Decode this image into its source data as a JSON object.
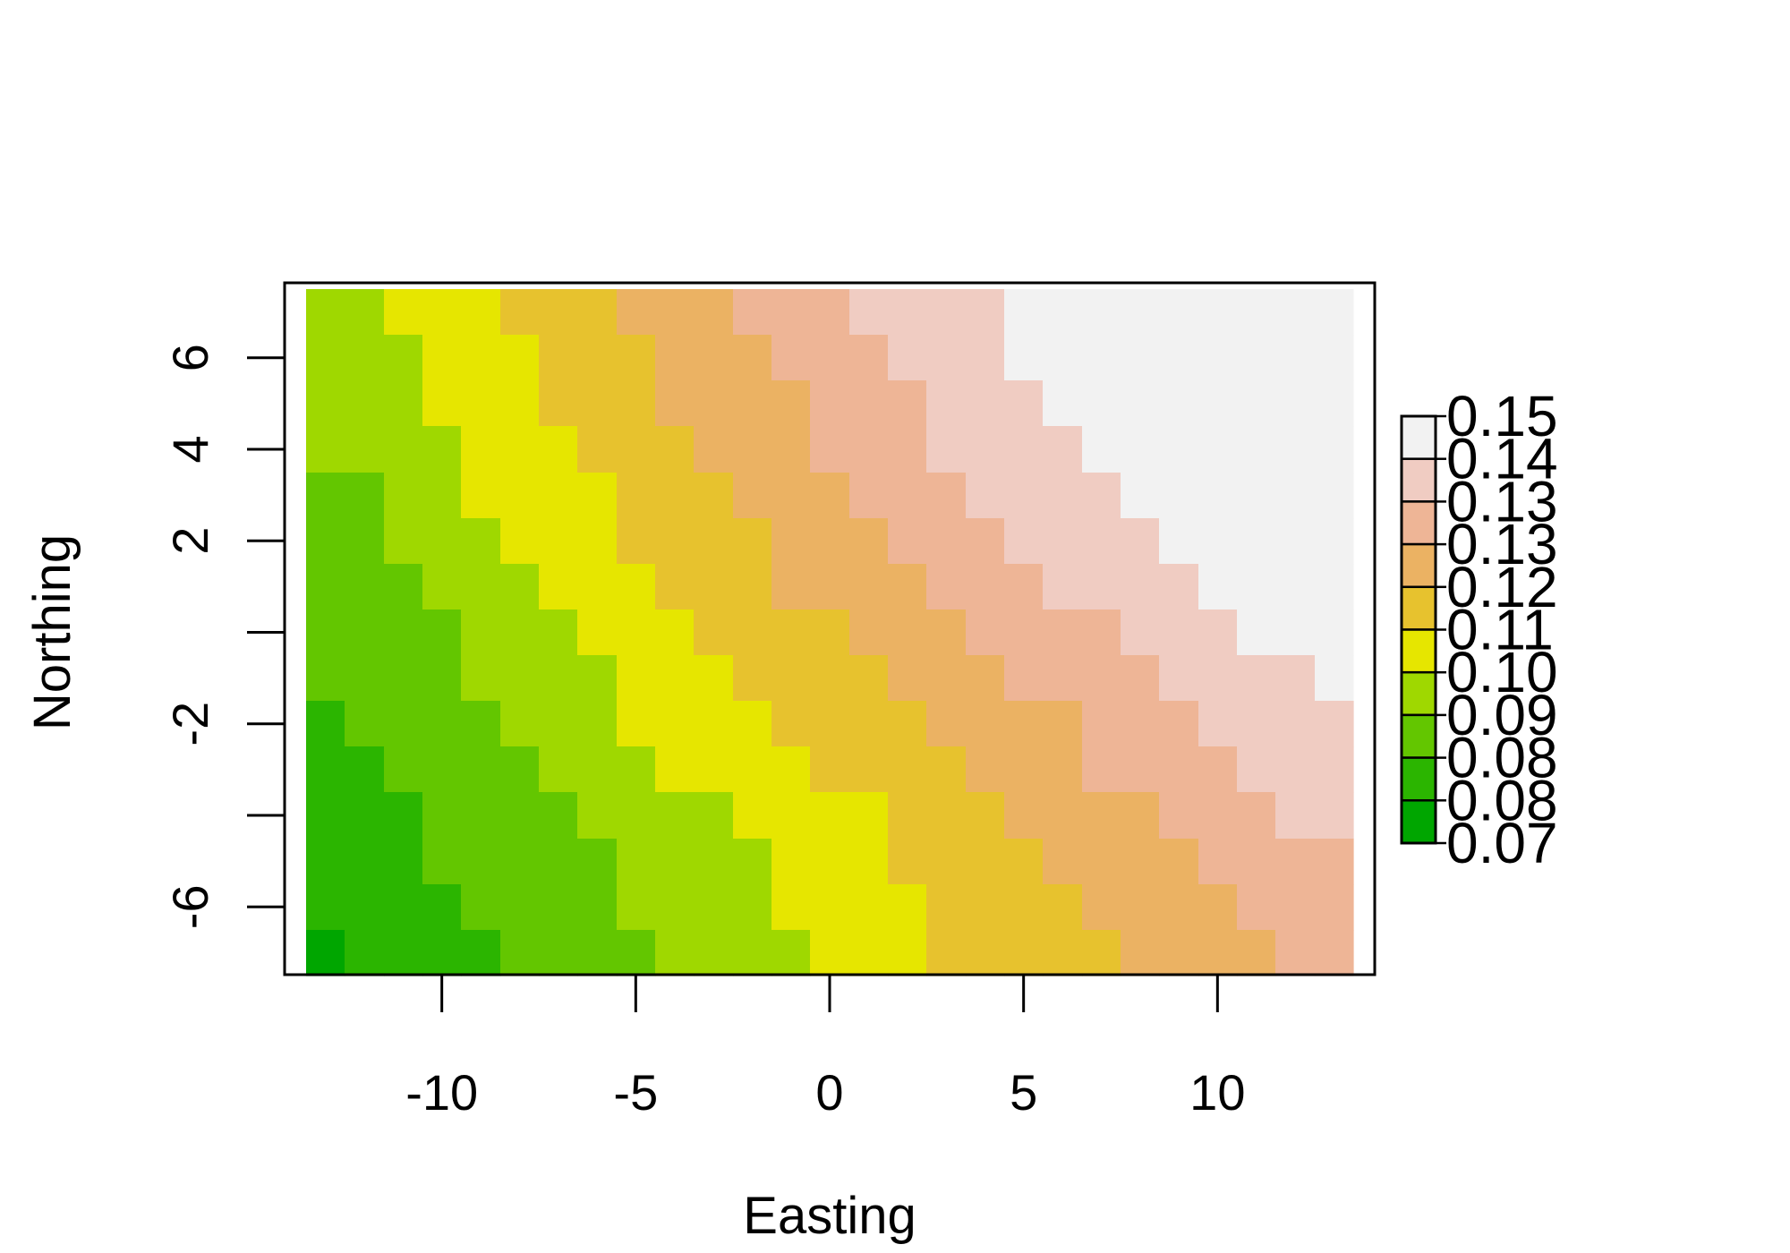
{
  "chart_data": {
    "type": "heatmap",
    "title": "",
    "xlabel": "Easting",
    "ylabel": "Northing",
    "xlim": [
      -13.5,
      13.5
    ],
    "ylim": [
      -7.5,
      7.5
    ],
    "x_ticks": [
      {
        "value": -10,
        "label": "-10"
      },
      {
        "value": -5,
        "label": "-5"
      },
      {
        "value": 0,
        "label": "0"
      },
      {
        "value": 5,
        "label": "5"
      },
      {
        "value": 10,
        "label": "10"
      }
    ],
    "y_ticks": [
      {
        "value": -6,
        "label": "-6"
      },
      {
        "value": -4,
        "label": ""
      },
      {
        "value": -2,
        "label": "-2"
      },
      {
        "value": 0,
        "label": ""
      },
      {
        "value": 2,
        "label": "2"
      },
      {
        "value": 4,
        "label": "4"
      },
      {
        "value": 6,
        "label": "6"
      }
    ],
    "grid": false,
    "grid_x_min": -13.5,
    "grid_y_max": 7.5,
    "grid_cell_width": 1,
    "grid_cell_height": 1,
    "class_breaks": [
      0.07,
      0.08,
      0.08,
      0.09,
      0.1,
      0.11,
      0.12,
      0.13,
      0.13,
      0.14,
      0.15
    ],
    "legend": {
      "placement": "right",
      "labels": [
        "0.15",
        "0.14",
        "0.13",
        "0.13",
        "0.12",
        "0.11",
        "0.10",
        "0.09",
        "0.08",
        "0.08",
        "0.07"
      ],
      "colors": [
        "#F2F2F2",
        "#F0CCC2",
        "#EEB596",
        "#EBB263",
        "#E7C22E",
        "#E6E600",
        "#9FD800",
        "#63C600",
        "#2BB500",
        "#00A600"
      ]
    },
    "class_rows": [
      [
        9,
        9,
        10,
        10,
        10,
        11,
        11,
        11,
        12,
        12,
        12,
        13,
        13,
        13,
        14,
        14,
        14,
        14,
        15,
        15,
        15,
        15,
        16,
        16,
        16,
        16,
        16
      ],
      [
        9,
        9,
        9,
        10,
        10,
        10,
        11,
        11,
        11,
        12,
        12,
        12,
        13,
        13,
        13,
        14,
        14,
        14,
        15,
        15,
        15,
        15,
        15,
        16,
        16,
        16,
        16
      ],
      [
        9,
        9,
        9,
        10,
        10,
        10,
        11,
        11,
        11,
        12,
        12,
        12,
        12,
        13,
        13,
        13,
        14,
        14,
        14,
        15,
        15,
        15,
        15,
        16,
        16,
        16,
        16
      ],
      [
        9,
        9,
        9,
        9,
        10,
        10,
        10,
        11,
        11,
        11,
        12,
        12,
        12,
        13,
        13,
        13,
        14,
        14,
        14,
        14,
        15,
        15,
        15,
        15,
        16,
        16,
        16
      ],
      [
        8,
        8,
        9,
        9,
        10,
        10,
        10,
        10,
        11,
        11,
        11,
        12,
        12,
        12,
        13,
        13,
        13,
        14,
        14,
        14,
        14,
        15,
        15,
        15,
        15,
        16,
        16
      ],
      [
        8,
        8,
        9,
        9,
        9,
        10,
        10,
        10,
        11,
        11,
        11,
        11,
        12,
        12,
        12,
        13,
        13,
        13,
        14,
        14,
        14,
        14,
        15,
        15,
        15,
        15,
        15
      ],
      [
        8,
        8,
        8,
        9,
        9,
        9,
        10,
        10,
        10,
        11,
        11,
        11,
        12,
        12,
        12,
        12,
        13,
        13,
        13,
        14,
        14,
        14,
        14,
        15,
        15,
        15,
        15
      ],
      [
        8,
        8,
        8,
        8,
        9,
        9,
        9,
        10,
        10,
        10,
        11,
        11,
        11,
        11,
        12,
        12,
        12,
        13,
        13,
        13,
        13,
        14,
        14,
        14,
        15,
        15,
        15
      ],
      [
        8,
        8,
        8,
        8,
        9,
        9,
        9,
        9,
        10,
        10,
        10,
        11,
        11,
        11,
        11,
        12,
        12,
        12,
        13,
        13,
        13,
        13,
        14,
        14,
        14,
        14,
        15
      ],
      [
        7,
        8,
        8,
        8,
        8,
        9,
        9,
        9,
        10,
        10,
        10,
        10,
        11,
        11,
        11,
        11,
        12,
        12,
        12,
        12,
        13,
        13,
        13,
        14,
        14,
        14,
        14
      ],
      [
        7,
        7,
        8,
        8,
        8,
        8,
        9,
        9,
        9,
        10,
        10,
        10,
        10,
        11,
        11,
        11,
        11,
        12,
        12,
        12,
        13,
        13,
        13,
        13,
        14,
        14,
        14
      ],
      [
        7,
        7,
        7,
        8,
        8,
        8,
        8,
        9,
        9,
        9,
        9,
        10,
        10,
        10,
        10,
        11,
        11,
        11,
        12,
        12,
        12,
        12,
        13,
        13,
        13,
        14,
        14
      ],
      [
        7,
        7,
        7,
        8,
        8,
        8,
        8,
        8,
        9,
        9,
        9,
        9,
        10,
        10,
        10,
        11,
        11,
        11,
        11,
        12,
        12,
        12,
        12,
        13,
        13,
        13,
        13
      ],
      [
        7,
        7,
        7,
        7,
        8,
        8,
        8,
        8,
        9,
        9,
        9,
        9,
        10,
        10,
        10,
        10,
        11,
        11,
        11,
        11,
        12,
        12,
        12,
        12,
        13,
        13,
        13
      ],
      [
        6,
        7,
        7,
        7,
        7,
        8,
        8,
        8,
        8,
        9,
        9,
        9,
        9,
        10,
        10,
        10,
        11,
        11,
        11,
        11,
        11,
        12,
        12,
        12,
        12,
        13,
        13
      ]
    ]
  }
}
